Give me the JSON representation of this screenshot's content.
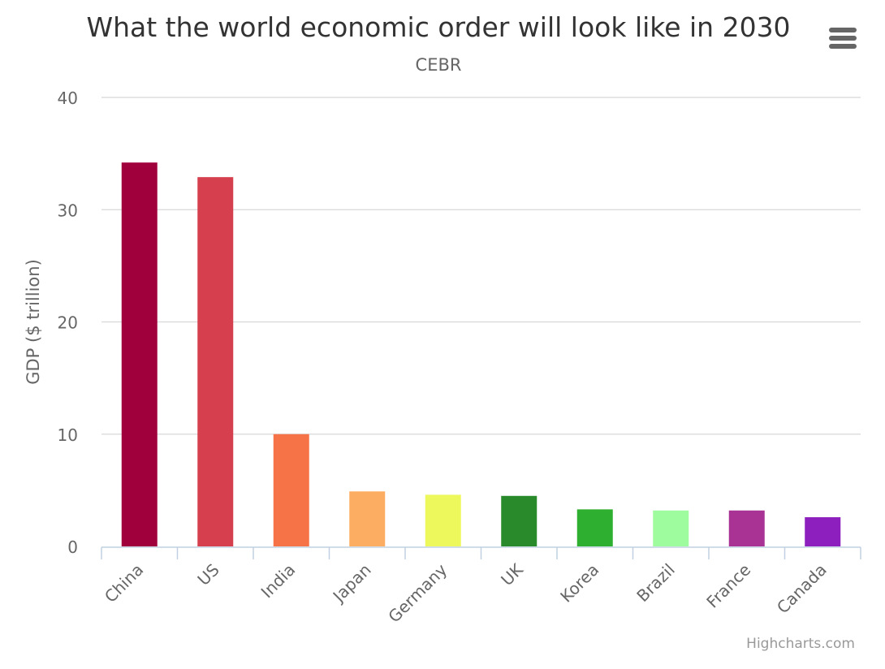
{
  "chart": {
    "title": "What the world economic order will look like in 2030",
    "subtitle": "CEBR",
    "credits": "Highcharts.com",
    "menu_icon": "hamburger-menu-icon"
  },
  "chart_data": {
    "type": "bar",
    "title": "What the world economic order will look like in 2030",
    "subtitle": "CEBR",
    "xlabel": "",
    "ylabel": "GDP ($ trillion)",
    "ylim": [
      0,
      40
    ],
    "yticks": [
      0,
      10,
      20,
      30,
      40
    ],
    "categories": [
      "China",
      "US",
      "India",
      "Japan",
      "Germany",
      "UK",
      "Korea",
      "Brazil",
      "France",
      "Canada"
    ],
    "values": [
      34.2,
      32.9,
      10.0,
      4.9,
      4.6,
      4.5,
      3.3,
      3.2,
      3.2,
      2.6
    ],
    "colors": [
      "#a0003c",
      "#d6404e",
      "#f57346",
      "#fdad61",
      "#edf85c",
      "#288a2a",
      "#2faf2f",
      "#9efc9e",
      "#a83395",
      "#8c1fbd"
    ],
    "grid": true,
    "legend": "none"
  }
}
